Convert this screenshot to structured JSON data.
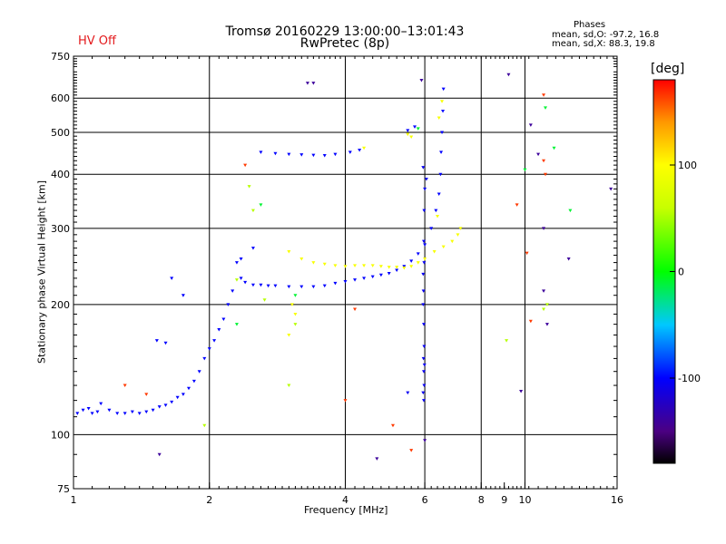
{
  "header": {
    "title_line1": "Tromsø 20160229 13:00:00–13:01:43",
    "title_line2": "RwPretec (8p)",
    "hv_status": "HV Off",
    "phases_title": "Phases",
    "phases_o": "mean, sd,O: -97.2, 16.8",
    "phases_x": "mean, sd,X:  88.3, 19.8"
  },
  "colors": {
    "hv_status": "#e31a1c",
    "grid": "#000000",
    "primary_trace": "#1f3cff",
    "secondary_trace": "#e6e600"
  },
  "chart_data": {
    "type": "scatter",
    "title": "Tromsø 20160229 13:00:00–13:01:43",
    "subtitle": "RwPretec (8p)",
    "xlabel": "Frequency [MHz]",
    "ylabel": "Stationary phase Virtual Height [km]",
    "x_scale": "log",
    "y_scale": "log",
    "xlim": [
      1,
      16
    ],
    "ylim": [
      75,
      750
    ],
    "x_ticks": [
      1,
      2,
      4,
      6,
      8,
      9,
      10,
      16
    ],
    "x_tick_labels": [
      "1",
      "2",
      "4",
      "6",
      "8",
      "9",
      "10",
      "16"
    ],
    "y_ticks": [
      75,
      100,
      200,
      300,
      400,
      500,
      600,
      750
    ],
    "y_tick_labels": [
      "75",
      "100",
      "200",
      "300",
      "400",
      "500",
      "600",
      "750"
    ],
    "grid_x": [
      2,
      4,
      6,
      8,
      10
    ],
    "grid_y": [
      100,
      200,
      300,
      400,
      500,
      600
    ],
    "colorbar": {
      "label": "[deg]",
      "min": -180,
      "max": 180,
      "ticks": [
        100,
        0,
        -100
      ],
      "tick_labels": [
        "100",
        "0",
        "-100"
      ]
    },
    "series": [
      {
        "phase": -100,
        "points": [
          [
            1.02,
            112
          ],
          [
            1.05,
            114
          ],
          [
            1.08,
            115
          ],
          [
            1.1,
            112
          ],
          [
            1.13,
            113
          ],
          [
            1.15,
            118
          ],
          [
            1.2,
            114
          ],
          [
            1.25,
            112
          ],
          [
            1.3,
            112
          ],
          [
            1.35,
            113
          ],
          [
            1.4,
            112
          ],
          [
            1.45,
            113
          ],
          [
            1.5,
            114
          ],
          [
            1.55,
            116
          ],
          [
            1.6,
            117
          ],
          [
            1.65,
            119
          ],
          [
            1.7,
            122
          ],
          [
            1.75,
            124
          ],
          [
            1.8,
            128
          ],
          [
            1.85,
            133
          ],
          [
            1.9,
            140
          ],
          [
            1.95,
            150
          ],
          [
            2.0,
            158
          ],
          [
            2.05,
            165
          ],
          [
            2.1,
            175
          ],
          [
            2.15,
            185
          ],
          [
            2.2,
            200
          ],
          [
            2.25,
            215
          ],
          [
            2.35,
            230
          ],
          [
            2.4,
            225
          ],
          [
            2.5,
            222
          ],
          [
            2.6,
            222
          ],
          [
            2.7,
            221
          ],
          [
            2.8,
            221
          ],
          [
            3.0,
            220
          ],
          [
            3.2,
            220
          ],
          [
            3.4,
            220
          ],
          [
            3.6,
            221
          ],
          [
            3.8,
            224
          ],
          [
            4.0,
            226
          ],
          [
            4.2,
            228
          ],
          [
            4.4,
            230
          ],
          [
            4.6,
            232
          ],
          [
            4.8,
            234
          ],
          [
            5.0,
            236
          ],
          [
            5.2,
            240
          ],
          [
            5.4,
            245
          ],
          [
            5.6,
            252
          ],
          [
            5.8,
            262
          ],
          [
            6.0,
            275
          ],
          [
            6.2,
            300
          ],
          [
            6.35,
            330
          ],
          [
            6.45,
            360
          ],
          [
            6.5,
            400
          ],
          [
            6.52,
            450
          ],
          [
            6.55,
            500
          ],
          [
            6.58,
            560
          ],
          [
            6.6,
            630
          ],
          [
            2.6,
            450
          ],
          [
            2.8,
            447
          ],
          [
            3.0,
            445
          ],
          [
            3.2,
            444
          ],
          [
            3.4,
            443
          ],
          [
            3.6,
            442
          ],
          [
            3.8,
            445
          ],
          [
            4.1,
            450
          ],
          [
            4.3,
            455
          ],
          [
            5.5,
            505
          ],
          [
            5.7,
            515
          ],
          [
            1.53,
            165
          ],
          [
            1.6,
            163
          ],
          [
            1.75,
            210
          ],
          [
            1.65,
            230
          ],
          [
            2.3,
            250
          ],
          [
            2.5,
            270
          ],
          [
            2.35,
            255
          ]
        ]
      },
      {
        "phase": 95,
        "points": [
          [
            3.0,
            265
          ],
          [
            3.2,
            255
          ],
          [
            3.4,
            250
          ],
          [
            3.6,
            248
          ],
          [
            3.8,
            246
          ],
          [
            4.0,
            245
          ],
          [
            4.2,
            246
          ],
          [
            4.4,
            246
          ],
          [
            4.6,
            246
          ],
          [
            4.8,
            245
          ],
          [
            5.0,
            244
          ],
          [
            5.2,
            244
          ],
          [
            5.4,
            243
          ],
          [
            5.6,
            245
          ],
          [
            5.8,
            250
          ],
          [
            6.0,
            255
          ],
          [
            6.3,
            265
          ],
          [
            6.6,
            272
          ],
          [
            6.9,
            280
          ],
          [
            7.1,
            290
          ],
          [
            7.2,
            300
          ],
          [
            6.4,
            320
          ],
          [
            3.05,
            200
          ],
          [
            3.1,
            190
          ],
          [
            3.0,
            170
          ],
          [
            4.4,
            460
          ],
          [
            5.5,
            495
          ],
          [
            5.6,
            488
          ],
          [
            6.45,
            540
          ],
          [
            6.55,
            590
          ]
        ]
      },
      {
        "phase": 55,
        "points": [
          [
            2.45,
            375
          ],
          [
            2.5,
            330
          ],
          [
            2.3,
            228
          ],
          [
            3.1,
            180
          ],
          [
            3.0,
            130
          ],
          [
            9.1,
            165
          ],
          [
            11.0,
            195
          ],
          [
            11.2,
            200
          ],
          [
            1.95,
            105
          ],
          [
            2.65,
            205
          ]
        ]
      },
      {
        "phase": 165,
        "points": [
          [
            1.3,
            130
          ],
          [
            1.45,
            124
          ],
          [
            2.4,
            420
          ],
          [
            4.0,
            120
          ],
          [
            4.2,
            195
          ],
          [
            5.1,
            105
          ],
          [
            5.6,
            92
          ],
          [
            11.0,
            610
          ],
          [
            11.0,
            430
          ],
          [
            11.1,
            400
          ],
          [
            10.1,
            263
          ],
          [
            10.3,
            183
          ],
          [
            9.6,
            340
          ]
        ]
      },
      {
        "phase": -10,
        "points": [
          [
            2.6,
            340
          ],
          [
            2.3,
            180
          ],
          [
            3.1,
            210
          ],
          [
            10.0,
            410
          ],
          [
            11.6,
            460
          ],
          [
            11.1,
            570
          ],
          [
            12.6,
            330
          ],
          [
            5.8,
            510
          ]
        ]
      },
      {
        "phase": -140,
        "points": [
          [
            1.55,
            90
          ],
          [
            3.3,
            650
          ],
          [
            3.4,
            650
          ],
          [
            5.9,
            660
          ],
          [
            6.0,
            97
          ],
          [
            9.2,
            680
          ],
          [
            10.3,
            520
          ],
          [
            9.8,
            126
          ],
          [
            11.0,
            215
          ],
          [
            11.2,
            180
          ],
          [
            12.5,
            255
          ],
          [
            10.7,
            445
          ],
          [
            4.7,
            88
          ],
          [
            11.0,
            300
          ],
          [
            15.5,
            370
          ]
        ]
      },
      {
        "phase": -105,
        "points": [
          [
            5.95,
            415
          ],
          [
            6.0,
            370
          ],
          [
            5.98,
            330
          ],
          [
            5.97,
            280
          ],
          [
            5.98,
            250
          ],
          [
            5.96,
            215
          ],
          [
            5.95,
            200
          ],
          [
            5.97,
            180
          ],
          [
            5.98,
            160
          ],
          [
            5.96,
            150
          ],
          [
            5.97,
            140
          ],
          [
            5.98,
            130
          ],
          [
            5.95,
            125
          ],
          [
            5.97,
            120
          ],
          [
            5.99,
            145
          ],
          [
            5.5,
            125
          ],
          [
            5.95,
            235
          ],
          [
            6.05,
            390
          ]
        ]
      }
    ]
  }
}
